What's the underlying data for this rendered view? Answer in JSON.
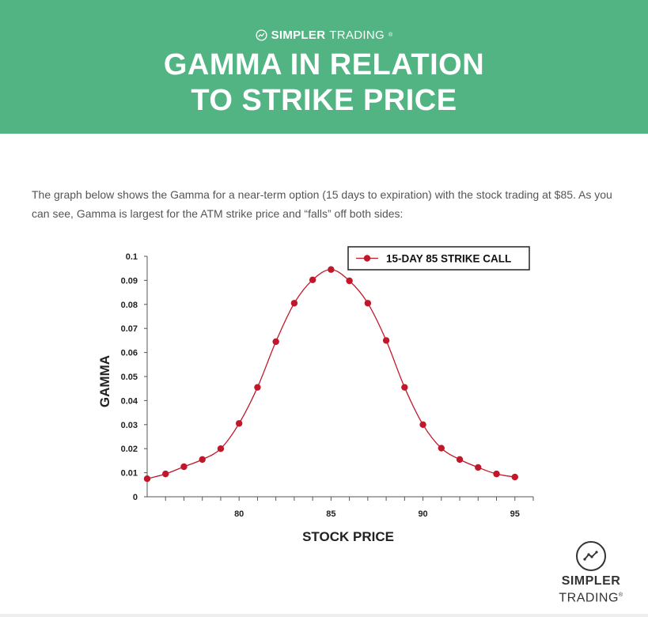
{
  "header": {
    "brand_bold": "SIMPLER",
    "brand_light": "TRADING",
    "brand_mark": "®",
    "title_line1": "GAMMA IN RELATION",
    "title_line2": "TO STRIKE PRICE",
    "bg_color": "#52b383"
  },
  "intro": {
    "text": "The graph below shows the Gamma for a near-term option (15 days to expiration) with the stock trading at $85. As you can see, Gamma is largest for the ATM strike price and “falls” off both sides:"
  },
  "chart_data": {
    "type": "line",
    "xlabel": "STOCK PRICE",
    "ylabel": "GAMMA",
    "xlim": [
      75,
      96
    ],
    "ylim": [
      0,
      0.1
    ],
    "x_ticks": [
      80,
      85,
      90,
      95
    ],
    "y_ticks": [
      0,
      0.01,
      0.02,
      0.03,
      0.04,
      0.05,
      0.06,
      0.07,
      0.08,
      0.09,
      0.1
    ],
    "y_tick_labels": [
      "0",
      "0.01",
      "0.02",
      "0.03",
      "0.04",
      "0.05",
      "0.06",
      "0.07",
      "0.08",
      "0.09",
      "0.1"
    ],
    "legend_position": "top-right",
    "series": [
      {
        "name": "15-DAY 85 STRIKE CALL",
        "color": "#c0182a",
        "x": [
          75,
          76,
          77,
          78,
          79,
          80,
          81,
          82,
          83,
          84,
          85,
          86,
          87,
          88,
          89,
          90,
          91,
          92,
          93,
          94,
          95
        ],
        "y": [
          0.0075,
          0.0095,
          0.0125,
          0.0155,
          0.02,
          0.0305,
          0.0455,
          0.0645,
          0.0805,
          0.0902,
          0.0945,
          0.0898,
          0.0805,
          0.065,
          0.0455,
          0.03,
          0.0202,
          0.0155,
          0.0122,
          0.0095,
          0.0082
        ]
      }
    ]
  },
  "logo": {
    "line1": "SIMPLER",
    "line2": "TRADING",
    "mark": "®"
  }
}
